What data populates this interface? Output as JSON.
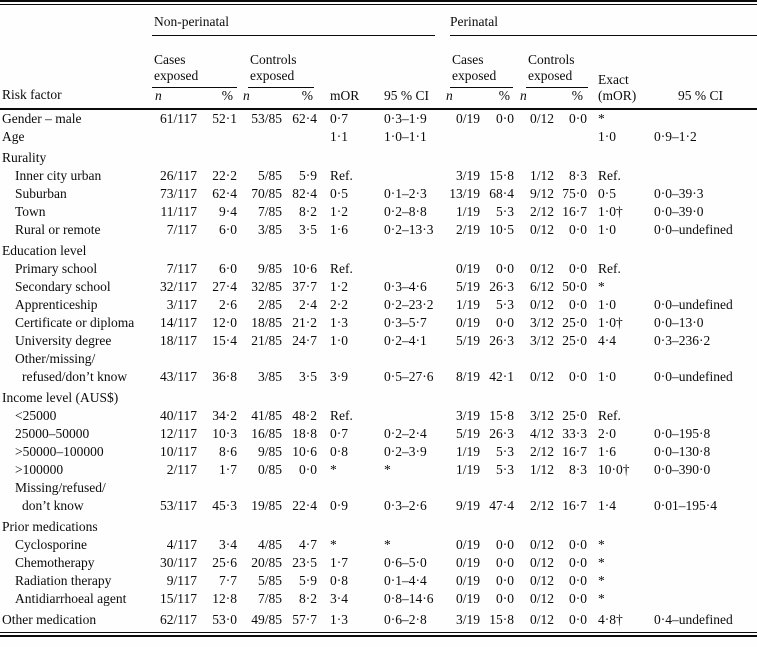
{
  "header": {
    "risk_factor": "Risk factor",
    "non_perinatal": "Non-perinatal",
    "perinatal": "Perinatal",
    "cases_exposed": "Cases exposed",
    "controls_exposed": "Controls exposed",
    "n": "n",
    "pct": "%",
    "mor": "mOR",
    "ci": "95 % CI",
    "exact_line1": "Exact",
    "exact_line2": "(mOR)"
  },
  "table": {
    "rows": [
      {
        "type": "data",
        "label": "Gender – male",
        "indent": 0,
        "cells": [
          "61/117",
          "52·1",
          "53/85",
          "62·4",
          "0·7",
          "0·3–1·9",
          "0/19",
          "0·0",
          "0/12",
          "0·0",
          "*",
          ""
        ]
      },
      {
        "type": "data",
        "label": "Age",
        "indent": 0,
        "cells": [
          "",
          "",
          "",
          "",
          "1·1",
          "1·0–1·1",
          "",
          "",
          "",
          "",
          "1·0",
          "0·9–1·2"
        ]
      },
      {
        "type": "section",
        "label": "Rurality",
        "indent": 0,
        "gap": true
      },
      {
        "type": "data",
        "label": "Inner city urban",
        "indent": 1,
        "cells": [
          "26/117",
          "22·2",
          "5/85",
          "5·9",
          "Ref.",
          "",
          "3/19",
          "15·8",
          "1/12",
          "8·3",
          "Ref.",
          ""
        ]
      },
      {
        "type": "data",
        "label": "Suburban",
        "indent": 1,
        "cells": [
          "73/117",
          "62·4",
          "70/85",
          "82·4",
          "0·5",
          "0·1–2·3",
          "13/19",
          "68·4",
          "9/12",
          "75·0",
          "0·5",
          "0·0–39·3"
        ]
      },
      {
        "type": "data",
        "label": "Town",
        "indent": 1,
        "cells": [
          "11/117",
          "9·4",
          "7/85",
          "8·2",
          "1·2",
          "0·2–8·8",
          "1/19",
          "5·3",
          "2/12",
          "16·7",
          "1·0†",
          "0·0–39·0"
        ]
      },
      {
        "type": "data",
        "label": "Rural or remote",
        "indent": 1,
        "cells": [
          "7/117",
          "6·0",
          "3/85",
          "3·5",
          "1·6",
          "0·2–13·3",
          "2/19",
          "10·5",
          "0/12",
          "0·0",
          "1·0",
          "0·0–undefined"
        ]
      },
      {
        "type": "section",
        "label": "Education level",
        "indent": 0,
        "gap": true
      },
      {
        "type": "data",
        "label": "Primary school",
        "indent": 1,
        "cells": [
          "7/117",
          "6·0",
          "9/85",
          "10·6",
          "Ref.",
          "",
          "0/19",
          "0·0",
          "0/12",
          "0·0",
          "Ref.",
          ""
        ]
      },
      {
        "type": "data",
        "label": "Secondary school",
        "indent": 1,
        "cells": [
          "32/117",
          "27·4",
          "32/85",
          "37·7",
          "1·2",
          "0·3–4·6",
          "5/19",
          "26·3",
          "6/12",
          "50·0",
          "*",
          ""
        ]
      },
      {
        "type": "data",
        "label": "Apprenticeship",
        "indent": 1,
        "cells": [
          "3/117",
          "2·6",
          "2/85",
          "2·4",
          "2·2",
          "0·2–23·2",
          "1/19",
          "5·3",
          "0/12",
          "0·0",
          "1·0",
          "0·0–undefined"
        ]
      },
      {
        "type": "data",
        "label": "Certificate or diploma",
        "indent": 1,
        "cells": [
          "14/117",
          "12·0",
          "18/85",
          "21·2",
          "1·3",
          "0·3–5·7",
          "0/19",
          "0·0",
          "3/12",
          "25·0",
          "1·0†",
          "0·0–13·0"
        ]
      },
      {
        "type": "data",
        "label": "University degree",
        "indent": 1,
        "cells": [
          "18/117",
          "15·4",
          "21/85",
          "24·7",
          "1·0",
          "0·2–4·1",
          "5/19",
          "26·3",
          "3/12",
          "25·0",
          "4·4",
          "0·3–236·2"
        ]
      },
      {
        "type": "data",
        "label": "Other/missing/",
        "label2": "refused/don’t know",
        "indent": 1,
        "cells": [
          "43/117",
          "36·8",
          "3/85",
          "3·5",
          "3·9",
          "0·5–27·6",
          "8/19",
          "42·1",
          "0/12",
          "0·0",
          "1·0",
          "0·0–undefined"
        ]
      },
      {
        "type": "section",
        "label": "Income level (AUS$)",
        "indent": 0,
        "gap": true
      },
      {
        "type": "data",
        "label": "<25000",
        "indent": 1,
        "cells": [
          "40/117",
          "34·2",
          "41/85",
          "48·2",
          "Ref.",
          "",
          "3/19",
          "15·8",
          "3/12",
          "25·0",
          "Ref.",
          ""
        ]
      },
      {
        "type": "data",
        "label": "25000–50000",
        "indent": 1,
        "cells": [
          "12/117",
          "10·3",
          "16/85",
          "18·8",
          "0·7",
          "0·2–2·4",
          "5/19",
          "26·3",
          "4/12",
          "33·3",
          "2·0",
          "0·0–195·8"
        ]
      },
      {
        "type": "data",
        "label": ">50000–100000",
        "indent": 1,
        "cells": [
          "10/117",
          "8·6",
          "9/85",
          "10·6",
          "0·8",
          "0·2–3·9",
          "1/19",
          "5·3",
          "2/12",
          "16·7",
          "1·6",
          "0·0–130·8"
        ]
      },
      {
        "type": "data",
        "label": ">100000",
        "indent": 1,
        "cells": [
          "2/117",
          "1·7",
          "0/85",
          "0·0",
          "*",
          "*",
          "1/19",
          "5·3",
          "1/12",
          "8·3",
          "10·0†",
          "0·0–390·0"
        ]
      },
      {
        "type": "data",
        "label": "Missing/refused/",
        "label2": "don’t know",
        "indent": 1,
        "cells": [
          "53/117",
          "45·3",
          "19/85",
          "22·4",
          "0·9",
          "0·3–2·6",
          "9/19",
          "47·4",
          "2/12",
          "16·7",
          "1·4",
          "0·01–195·4"
        ]
      },
      {
        "type": "section",
        "label": "Prior medications",
        "indent": 0,
        "gap": true
      },
      {
        "type": "data",
        "label": "Cyclosporine",
        "indent": 1,
        "cells": [
          "4/117",
          "3·4",
          "4/85",
          "4·7",
          "*",
          "*",
          "0/19",
          "0·0",
          "0/12",
          "0·0",
          "*",
          ""
        ]
      },
      {
        "type": "data",
        "label": "Chemotherapy",
        "indent": 1,
        "cells": [
          "30/117",
          "25·6",
          "20/85",
          "23·5",
          "1·7",
          "0·6–5·0",
          "0/19",
          "0·0",
          "0/12",
          "0·0",
          "*",
          ""
        ]
      },
      {
        "type": "data",
        "label": "Radiation therapy",
        "indent": 1,
        "cells": [
          "9/117",
          "7·7",
          "5/85",
          "5·9",
          "0·8",
          "0·1–4·4",
          "0/19",
          "0·0",
          "0/12",
          "0·0",
          "*",
          ""
        ]
      },
      {
        "type": "data",
        "label": "Antidiarrhoeal agent",
        "indent": 1,
        "cells": [
          "15/117",
          "12·8",
          "7/85",
          "8·2",
          "3·4",
          "0·8–14·6",
          "0/19",
          "0·0",
          "0/12",
          "0·0",
          "*",
          ""
        ]
      },
      {
        "type": "data",
        "label": "Other medication",
        "indent": 0,
        "gap": true,
        "cells": [
          "62/117",
          "53·0",
          "49/85",
          "57·7",
          "1·3",
          "0·6–2·8",
          "3/19",
          "15·8",
          "0/12",
          "0·0",
          "4·8†",
          "0·4–undefined"
        ]
      }
    ]
  }
}
